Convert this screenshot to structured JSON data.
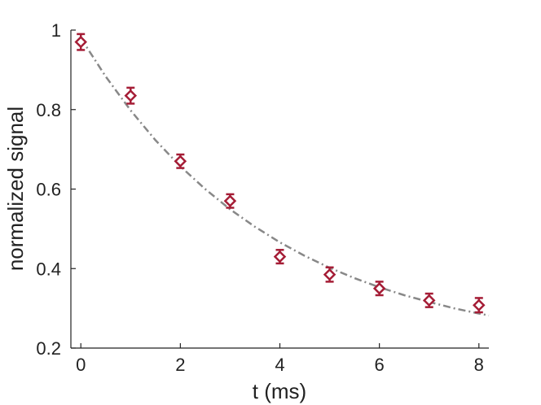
{
  "chart_data": {
    "type": "scatter",
    "title": "",
    "xlabel": "t (ms)",
    "ylabel": "normalized signal",
    "xlim": [
      -0.2,
      8.2
    ],
    "ylim": [
      0.2,
      1.0
    ],
    "xticks": [
      0,
      2,
      4,
      6,
      8
    ],
    "yticks": [
      0.2,
      0.4,
      0.6,
      0.8,
      1.0
    ],
    "xtick_labels": [
      "0",
      "2",
      "4",
      "6",
      "8"
    ],
    "ytick_labels": [
      "0.2",
      "0.4",
      "0.6",
      "0.8",
      "1"
    ],
    "grid": false,
    "legend": "none",
    "series": [
      {
        "kind": "points-with-error-bars",
        "marker": "diamond",
        "color": "#a51d36",
        "points": [
          {
            "x": 0,
            "y": 0.97,
            "err": 0.02
          },
          {
            "x": 1,
            "y": 0.835,
            "err": 0.02
          },
          {
            "x": 2,
            "y": 0.67,
            "err": 0.017
          },
          {
            "x": 3,
            "y": 0.57,
            "err": 0.017
          },
          {
            "x": 4,
            "y": 0.43,
            "err": 0.017
          },
          {
            "x": 5,
            "y": 0.385,
            "err": 0.018
          },
          {
            "x": 6,
            "y": 0.35,
            "err": 0.017
          },
          {
            "x": 7,
            "y": 0.32,
            "err": 0.017
          },
          {
            "x": 8,
            "y": 0.308,
            "err": 0.018
          }
        ]
      },
      {
        "kind": "fit-curve",
        "style": "dash-dot",
        "color": "#888888",
        "x": [
          0,
          0.5,
          1,
          1.5,
          2,
          2.5,
          3,
          3.5,
          4,
          4.5,
          5,
          5.5,
          6,
          6.5,
          7,
          7.5,
          8,
          8.2
        ],
        "y": [
          0.98,
          0.883,
          0.798,
          0.723,
          0.657,
          0.6,
          0.549,
          0.505,
          0.466,
          0.432,
          0.402,
          0.376,
          0.353,
          0.333,
          0.316,
          0.3,
          0.287,
          0.282
        ]
      }
    ]
  }
}
